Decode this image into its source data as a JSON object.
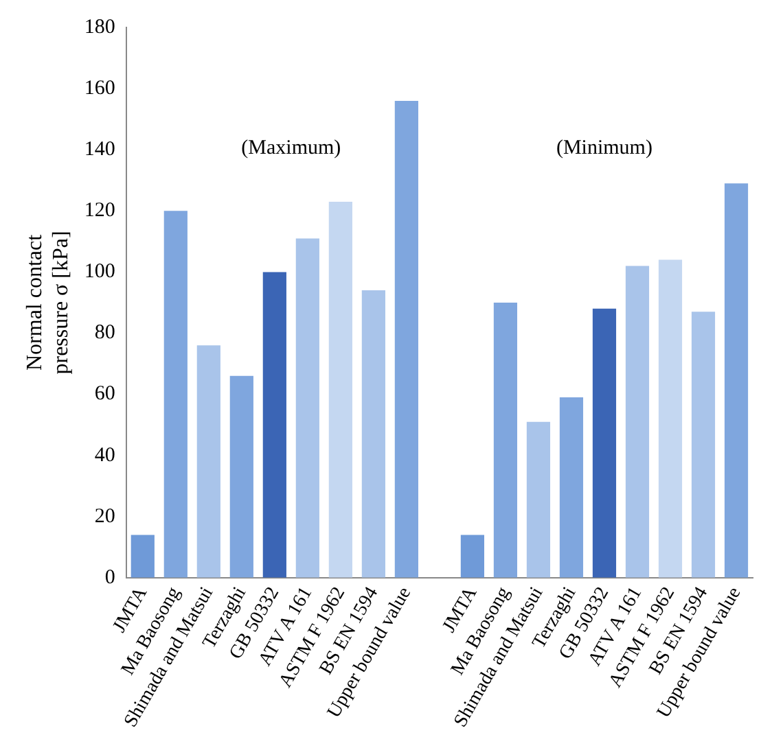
{
  "chart_data": {
    "type": "bar",
    "ylabel": "Normal contact pressure σ [kPa]",
    "categories": [
      "JMTA",
      "Ma Baosong",
      "Shimada and Matsui",
      "Terzaghi",
      "GB 50332",
      "ATV A 161",
      "ASTM F 1962",
      "BS EN 1594",
      "Upper bound value",
      null,
      "JMTA",
      "Ma Baosong",
      "Shimada and Matsui",
      "Terzaghi",
      "GB 50332",
      "ATV A 161",
      "ASTM F 1962",
      "BS EN 1594",
      "Upper bound value"
    ],
    "values": [
      14,
      120,
      76,
      66,
      100,
      111,
      123,
      94,
      156,
      null,
      14,
      90,
      51,
      59,
      88,
      102,
      104,
      87,
      129
    ],
    "colors": [
      "#6f9ad8",
      "#7fa6de",
      "#a9c4ea",
      "#7fa6de",
      "#3b65b5",
      "#a9c4ea",
      "#c4d7f1",
      "#a9c4ea",
      "#7fa6de",
      "#ffffff",
      "#6f9ad8",
      "#7fa6de",
      "#a9c4ea",
      "#7fa6de",
      "#3b65b5",
      "#a9c4ea",
      "#c4d7f1",
      "#a9c4ea",
      "#7fa6de"
    ],
    "ylim": [
      0,
      180
    ],
    "yticks": [
      0,
      20,
      40,
      60,
      80,
      100,
      120,
      140,
      160,
      180
    ],
    "grid": false,
    "legend": false,
    "annotations": [
      "(Maximum)",
      "(Minimum)"
    ]
  }
}
